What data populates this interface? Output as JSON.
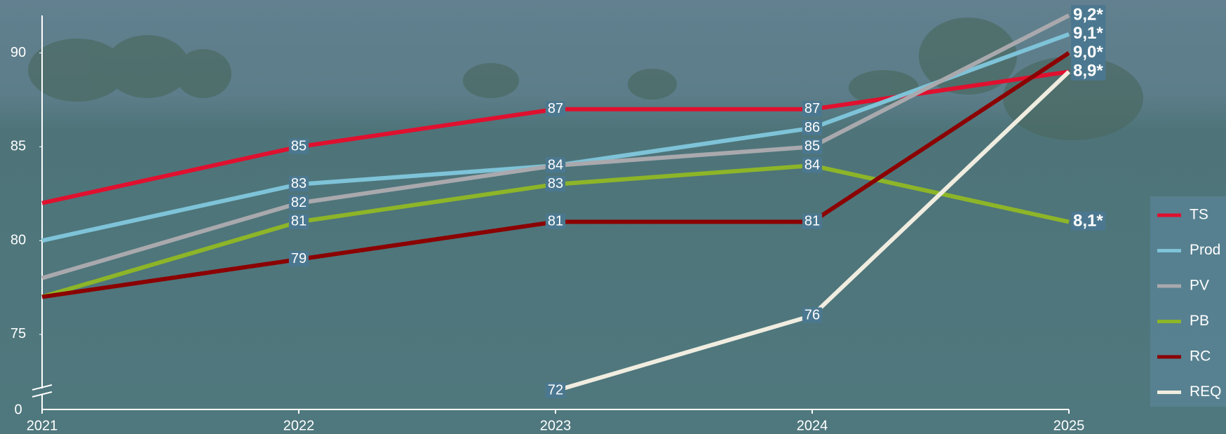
{
  "chart_data": {
    "type": "line",
    "x": [
      2021,
      2022,
      2023,
      2024,
      2025
    ],
    "xlim": [
      2021,
      2025
    ],
    "xticks": [
      2021,
      2022,
      2023,
      2024,
      2025
    ],
    "ylim": [
      71,
      92
    ],
    "yticks": [
      75,
      80,
      85,
      90
    ],
    "ybreak_label": "0",
    "legend": "right",
    "series": [
      {
        "name": "TS",
        "color": "#e0102f",
        "values": [
          82,
          85,
          87,
          87,
          89
        ],
        "value_labels": [
          null,
          null,
          null,
          null,
          "8,9*"
        ]
      },
      {
        "name": "Prod",
        "color": "#7ec3d8",
        "values": [
          80,
          83,
          84,
          86,
          91
        ],
        "value_labels": [
          null,
          null,
          null,
          null,
          "9,1*"
        ]
      },
      {
        "name": "PV",
        "color": "#a9a9ad",
        "values": [
          78,
          82,
          84,
          85,
          92
        ],
        "value_labels": [
          null,
          null,
          null,
          null,
          "9,2*"
        ]
      },
      {
        "name": "PB",
        "color": "#8db528",
        "values": [
          77,
          81,
          83,
          84,
          81
        ],
        "value_labels": [
          null,
          null,
          null,
          null,
          "8,1*"
        ]
      },
      {
        "name": "RC",
        "color": "#8b0000",
        "values": [
          77,
          79,
          81,
          81,
          90
        ],
        "value_labels": [
          null,
          null,
          null,
          null,
          "9,0*"
        ]
      },
      {
        "name": "REQ",
        "color": "#f0ede0",
        "values": [
          null,
          null,
          72,
          76,
          89
        ],
        "value_labels": [
          null,
          null,
          null,
          null,
          null
        ]
      }
    ]
  }
}
